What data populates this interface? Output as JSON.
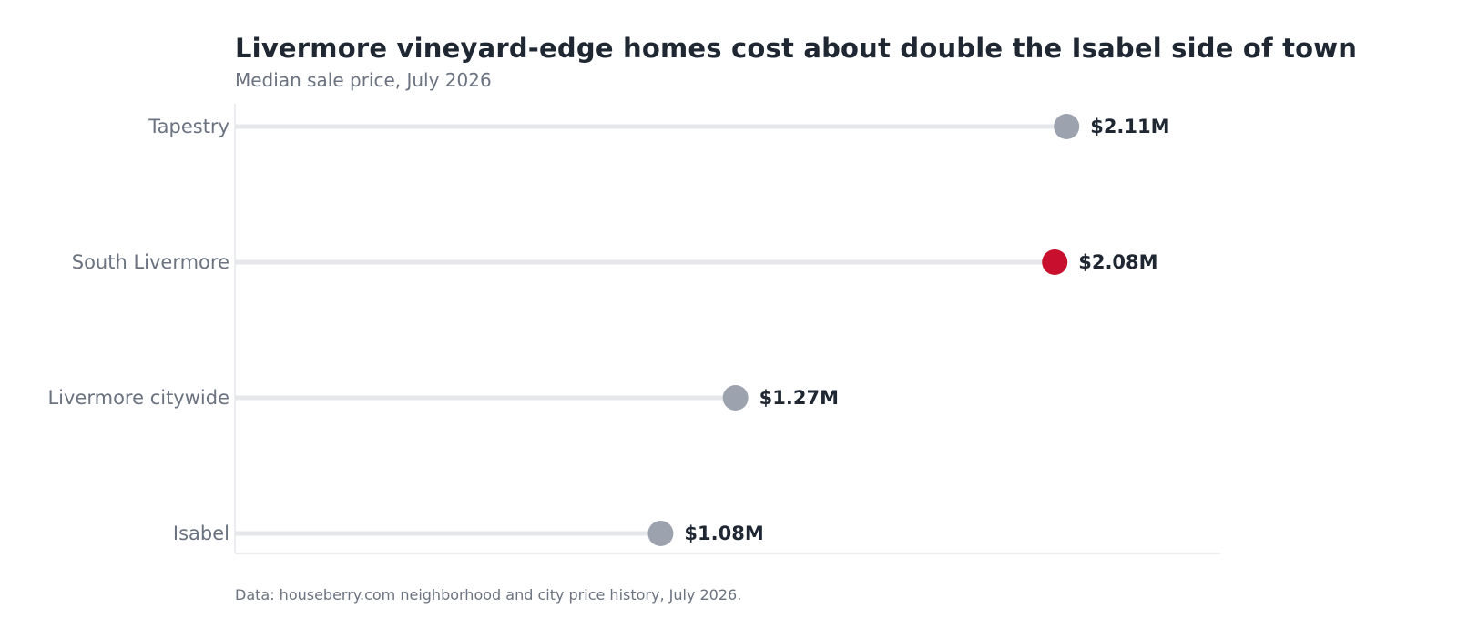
{
  "chart_data": {
    "type": "lollipop",
    "title": "Livermore vineyard-edge homes cost about double the Isabel side of town",
    "subtitle": "Median sale price, July 2026",
    "source": "Data: houseberry.com neighborhood and city price history, July 2026.",
    "xlabel": "",
    "ylabel": "",
    "xlim": [
      0,
      2.5
    ],
    "unit": "M USD",
    "grid": false,
    "legend": "none",
    "categories": [
      "Tapestry",
      "South Livermore",
      "Livermore citywide",
      "Isabel"
    ],
    "values": [
      2.11,
      2.08,
      1.27,
      1.08
    ],
    "value_labels": [
      "$2.11M",
      "$2.08M",
      "$1.27M",
      "$1.08M"
    ],
    "highlight": "South Livermore"
  },
  "colors": {
    "highlight": "#c8102e",
    "point": "#9ca3af",
    "stem": "#e5e7eb",
    "axis": "#e5e7eb",
    "title": "#1f2733",
    "muted": "#6b7280"
  }
}
